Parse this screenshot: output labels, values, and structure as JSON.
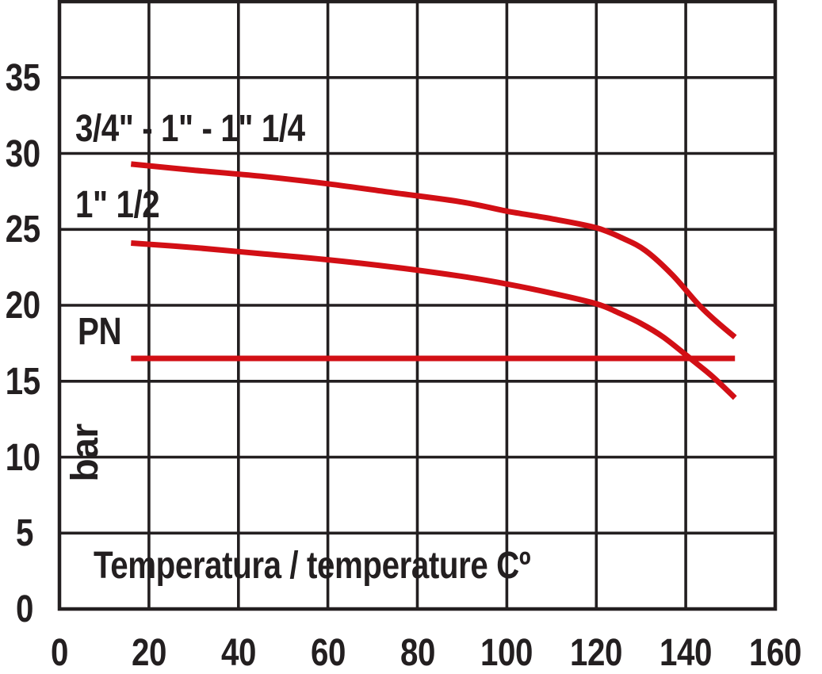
{
  "page": {
    "background_color": "#ffffff",
    "text_color": "#231f20",
    "accent_color": "#d20f15"
  },
  "chart_data": {
    "type": "line",
    "title": "",
    "xlabel": "Temperatura / temperature Cº",
    "ylabel": "bar",
    "xlim": [
      0,
      160
    ],
    "ylim": [
      0,
      40
    ],
    "x_ticks": [
      0,
      20,
      40,
      60,
      80,
      100,
      120,
      140,
      160
    ],
    "y_ticks": [
      0,
      5,
      10,
      15,
      20,
      25,
      30,
      35
    ],
    "x_gridline_step": 20,
    "y_gridline_step": 5,
    "grid": "on",
    "legend_position": "inline-labels",
    "colors": {
      "line": "#d20f15",
      "grid": "#231f20",
      "text": "#231f20"
    },
    "labels": {
      "series_top": "3/4\" - 1\" - 1\" 1/4",
      "series_bottom": "1\" 1/2",
      "pn": "PN",
      "y_axis": "bar",
      "x_axis": "Temperatura / temperature Cº"
    },
    "series": [
      {
        "id": "size-3-4-to-1-1-4",
        "name": "3/4\" - 1\" - 1\" 1/4",
        "unit_x": "°C",
        "unit_y": "bar",
        "points": [
          [
            16,
            29.3
          ],
          [
            30,
            28.9
          ],
          [
            45,
            28.5
          ],
          [
            60,
            28.0
          ],
          [
            75,
            27.4
          ],
          [
            90,
            26.8
          ],
          [
            100,
            26.2
          ],
          [
            110,
            25.7
          ],
          [
            120,
            25.1
          ],
          [
            126,
            24.4
          ],
          [
            131,
            23.6
          ],
          [
            137,
            22.0
          ],
          [
            143,
            20.0
          ],
          [
            147,
            18.9
          ],
          [
            151,
            17.9
          ]
        ]
      },
      {
        "id": "size-1-1-2",
        "name": "1\" 1/2",
        "unit_x": "°C",
        "unit_y": "bar",
        "points": [
          [
            16,
            24.1
          ],
          [
            30,
            23.8
          ],
          [
            45,
            23.4
          ],
          [
            60,
            23.0
          ],
          [
            75,
            22.5
          ],
          [
            90,
            21.9
          ],
          [
            100,
            21.4
          ],
          [
            110,
            20.8
          ],
          [
            120,
            20.1
          ],
          [
            125,
            19.5
          ],
          [
            130,
            18.8
          ],
          [
            135,
            17.9
          ],
          [
            141,
            16.5
          ],
          [
            146,
            15.3
          ],
          [
            151,
            13.9
          ]
        ]
      },
      {
        "id": "pn-line",
        "name": "PN",
        "unit_x": "°C",
        "unit_y": "bar",
        "points": [
          [
            16,
            16.5
          ],
          [
            151,
            16.5
          ]
        ]
      }
    ]
  }
}
